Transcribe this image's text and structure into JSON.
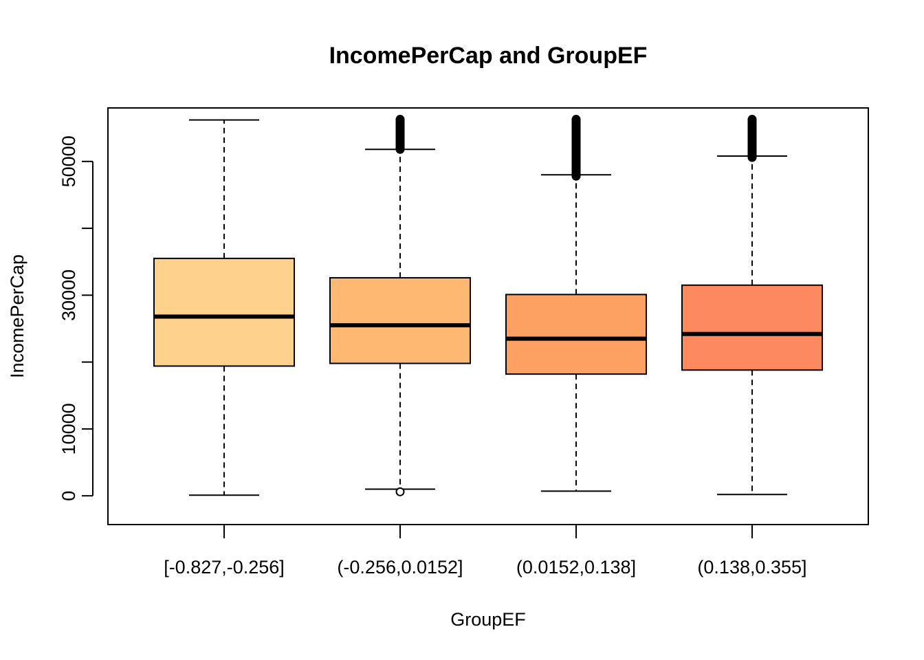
{
  "chart_data": {
    "type": "boxplot",
    "title": "IncomePerCap and GroupEF",
    "xlabel": "GroupEF",
    "ylabel": "IncomePerCap",
    "ylim": [
      -4300,
      58000
    ],
    "y_ticks": [
      0,
      10000,
      20000,
      30000,
      40000,
      50000
    ],
    "y_tick_labels": [
      "0",
      "10000",
      "",
      "30000",
      "",
      "50000"
    ],
    "grid": false,
    "categories": [
      "[-0.827,-0.256]",
      "(-0.256,0.0152]",
      "(0.0152,0.138]",
      "(0.138,0.355]"
    ],
    "colors": [
      "#FED18C",
      "#FEB871",
      "#FDA162",
      "#FC8A5E"
    ],
    "boxes": [
      {
        "whisker_low": 100,
        "q1": 19400,
        "median": 26800,
        "q3": 35500,
        "whisker_high": 56200,
        "outliers_low": [],
        "outliers_high_range": null
      },
      {
        "whisker_low": 1000,
        "q1": 19800,
        "median": 25500,
        "q3": 32600,
        "whisker_high": 51800,
        "outliers_low": [
          600
        ],
        "outliers_high_range": [
          51800,
          56300
        ]
      },
      {
        "whisker_low": 700,
        "q1": 18200,
        "median": 23500,
        "q3": 30100,
        "whisker_high": 48000,
        "outliers_low": [],
        "outliers_high_range": [
          47800,
          56300
        ]
      },
      {
        "whisker_low": 200,
        "q1": 18800,
        "median": 24200,
        "q3": 31500,
        "whisker_high": 50800,
        "outliers_low": [],
        "outliers_high_range": [
          50600,
          56300
        ]
      }
    ]
  }
}
